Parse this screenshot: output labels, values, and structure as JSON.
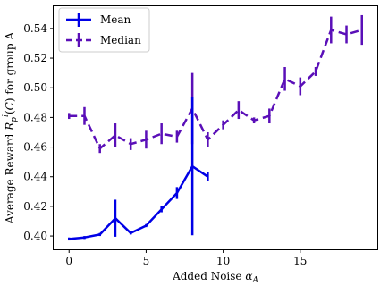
{
  "chart_data": {
    "type": "line",
    "title": "",
    "xlabel": "Added Noise α_A",
    "ylabel": "Average Reward R_p^i(C) for group A",
    "xlim": [
      -1,
      20
    ],
    "ylim": [
      0.391,
      0.555
    ],
    "xticks": [
      "0",
      "5",
      "10",
      "15"
    ],
    "yticks": [
      "0.40",
      "0.42",
      "0.44",
      "0.46",
      "0.48",
      "0.50",
      "0.52",
      "0.54"
    ],
    "grid": false,
    "legend_position": "top-left",
    "series": [
      {
        "name": "Mean",
        "color": "#0000e6",
        "linestyle": "solid",
        "points": [
          {
            "x": 0,
            "y": 0.398,
            "err": 0.001
          },
          {
            "x": 1,
            "y": 0.399,
            "err": 0.001
          },
          {
            "x": 2,
            "y": 0.401,
            "err": 0.001
          },
          {
            "x": 3,
            "y": 0.412,
            "err": 0.0125
          },
          {
            "x": 4,
            "y": 0.402,
            "err": 0.001
          },
          {
            "x": 5,
            "y": 0.407,
            "err": 0.001
          },
          {
            "x": 6,
            "y": 0.418,
            "err": 0.002
          },
          {
            "x": 7,
            "y": 0.429,
            "err": 0.004
          },
          {
            "x": 8,
            "y": 0.447,
            "err": 0.0465
          },
          {
            "x": 9,
            "y": 0.44,
            "err": 0.003
          }
        ]
      },
      {
        "name": "Median",
        "color": "#5a0fb8",
        "linestyle": "dashed",
        "points": [
          {
            "x": 0,
            "y": 0.481,
            "err": 0.002
          },
          {
            "x": 1,
            "y": 0.481,
            "err": 0.006
          },
          {
            "x": 2,
            "y": 0.459,
            "err": 0.003
          },
          {
            "x": 3,
            "y": 0.468,
            "err": 0.008
          },
          {
            "x": 4,
            "y": 0.462,
            "err": 0.004
          },
          {
            "x": 5,
            "y": 0.465,
            "err": 0.006
          },
          {
            "x": 6,
            "y": 0.469,
            "err": 0.007
          },
          {
            "x": 7,
            "y": 0.467,
            "err": 0.004
          },
          {
            "x": 8,
            "y": 0.486,
            "err": 0.024
          },
          {
            "x": 9,
            "y": 0.465,
            "err": 0.005
          },
          {
            "x": 10,
            "y": 0.475,
            "err": 0.003
          },
          {
            "x": 11,
            "y": 0.485,
            "err": 0.006
          },
          {
            "x": 12,
            "y": 0.478,
            "err": 0.002
          },
          {
            "x": 13,
            "y": 0.481,
            "err": 0.005
          },
          {
            "x": 14,
            "y": 0.506,
            "err": 0.008
          },
          {
            "x": 15,
            "y": 0.501,
            "err": 0.006
          },
          {
            "x": 16,
            "y": 0.511,
            "err": 0.003
          },
          {
            "x": 17,
            "y": 0.539,
            "err": 0.009
          },
          {
            "x": 18,
            "y": 0.536,
            "err": 0.006
          },
          {
            "x": 19,
            "y": 0.539,
            "err": 0.01
          }
        ]
      }
    ]
  }
}
